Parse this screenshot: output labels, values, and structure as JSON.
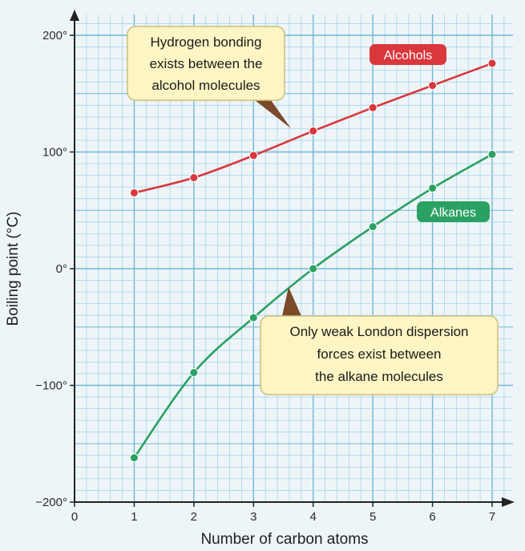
{
  "chart_data": {
    "type": "line",
    "title": "",
    "xlabel": "Number of carbon atoms",
    "ylabel": "Boiling point (°C)",
    "xlim": [
      0,
      7
    ],
    "ylim": [
      -200,
      200
    ],
    "x_ticks": [
      {
        "value": 0,
        "label": "0"
      },
      {
        "value": 1,
        "label": "1"
      },
      {
        "value": 2,
        "label": "2"
      },
      {
        "value": 3,
        "label": "3"
      },
      {
        "value": 4,
        "label": "4"
      },
      {
        "value": 5,
        "label": "5"
      },
      {
        "value": 6,
        "label": "6"
      },
      {
        "value": 7,
        "label": "7"
      }
    ],
    "y_ticks": [
      {
        "value": 200,
        "label": "200°"
      },
      {
        "value": 100,
        "label": "100°"
      },
      {
        "value": 0,
        "label": "0°"
      },
      {
        "value": -100,
        "label": "−100°"
      },
      {
        "value": -200,
        "label": "−200°"
      }
    ],
    "grid": true,
    "series": [
      {
        "name": "Alcohols",
        "color": "#d9373c",
        "x": [
          1,
          2,
          3,
          4,
          5,
          6,
          7
        ],
        "y": [
          65,
          78,
          97,
          118,
          138,
          157,
          176
        ]
      },
      {
        "name": "Alkanes",
        "color": "#2aa163",
        "x": [
          1,
          2,
          3,
          4,
          5,
          6,
          7
        ],
        "y": [
          -162,
          -89,
          -42,
          0,
          36,
          69,
          98
        ]
      }
    ],
    "annotations": [
      {
        "id": "alcohols-note",
        "lines": [
          "Hydrogen bonding",
          "exists between the",
          "alcohol molecules"
        ],
        "points_to": {
          "x": 3.7,
          "y": 118
        }
      },
      {
        "id": "alkanes-note",
        "lines": [
          "Only weak London dispersion",
          "forces exist between",
          "the alkane molecules"
        ],
        "points_to": {
          "x": 3.6,
          "y": -20
        }
      }
    ]
  },
  "colors": {
    "grid_major": "#6fb6d6",
    "grid_minor": "#a9d6ea",
    "background": "#eef5f8",
    "callout_fill": "#fdf5c4",
    "callout_border": "#cfbf7c"
  }
}
